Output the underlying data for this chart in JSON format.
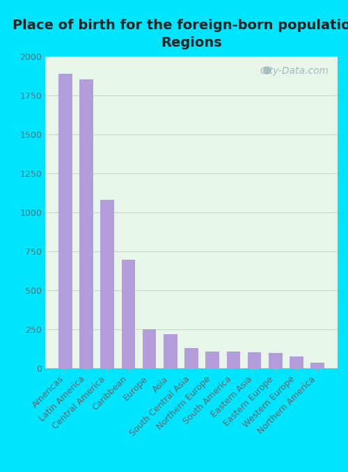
{
  "title": "Place of birth for the foreign-born population -\nRegions",
  "categories": [
    "Americas",
    "Latin America",
    "Central America",
    "Caribbean",
    "Europe",
    "Asia",
    "South Central Asia",
    "Northern Europe",
    "South America",
    "Eastern Asia",
    "Eastern Europe",
    "Western Europe",
    "Northern America"
  ],
  "values": [
    1890,
    1855,
    1080,
    695,
    248,
    220,
    128,
    108,
    105,
    100,
    97,
    75,
    35
  ],
  "bar_color": "#b39ddb",
  "background_outer": "#00e5ff",
  "ylim": [
    0,
    2000
  ],
  "yticks": [
    0,
    250,
    500,
    750,
    1000,
    1250,
    1500,
    1750,
    2000
  ],
  "title_fontsize": 14,
  "tick_label_fontsize": 9,
  "watermark_text": "City-Data.com",
  "grid_color": "#c8d8c0",
  "inner_bg_color_tl": "#e8f5e0",
  "inner_bg_color_br": "#f8fdf6"
}
